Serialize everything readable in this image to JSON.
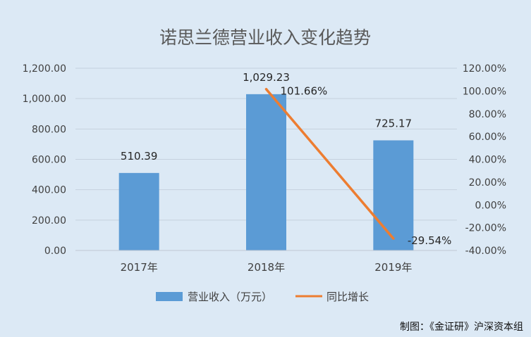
{
  "chart_data": {
    "type": "bar",
    "title": "诺思兰德营业收入变化趋势",
    "categories": [
      "2017年",
      "2018年",
      "2019年"
    ],
    "series": [
      {
        "name": "营业收入（万元）",
        "type": "bar",
        "axis": "left",
        "values": [
          510.39,
          1029.23,
          725.17
        ],
        "labels": [
          "510.39",
          "1,029.23",
          "725.17"
        ],
        "color": "#5b9bd5"
      },
      {
        "name": "同比增长",
        "type": "line",
        "axis": "right",
        "values": [
          null,
          101.66,
          -29.54
        ],
        "labels": [
          "",
          "101.66%",
          "-29.54%"
        ],
        "color": "#ed7d31"
      }
    ],
    "y_left": {
      "range": [
        0,
        1200
      ],
      "ticks": [
        "0.00",
        "200.00",
        "400.00",
        "600.00",
        "800.00",
        "1,000.00",
        "1,200.00"
      ]
    },
    "y_right": {
      "range": [
        -40,
        120
      ],
      "ticks": [
        "-40.00%",
        "-20.00%",
        "0.00%",
        "20.00%",
        "40.00%",
        "60.00%",
        "80.00%",
        "100.00%",
        "120.00%"
      ]
    },
    "grid": true,
    "legend_position": "bottom"
  },
  "credit": "制图：《金证研》沪深资本组",
  "background_color": "#dce9f5"
}
